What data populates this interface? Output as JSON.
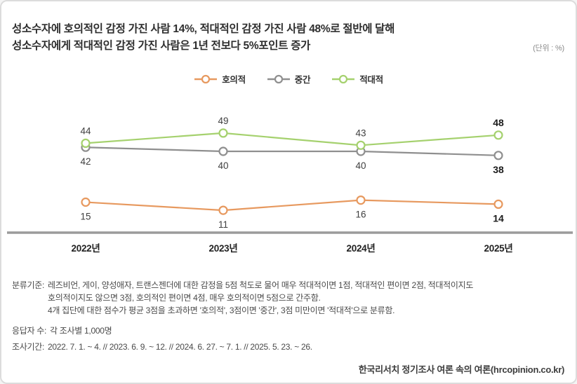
{
  "title": {
    "line1": "성소수자에 호의적인 감정 가진 사람 14%, 적대적인 감정 가진 사람 48%로 절반에 달해",
    "line2": "성소수자에게 적대적인 감정 가진 사람은 1년 전보다 5%포인트 증가"
  },
  "unit_label": "(단위 : %)",
  "chart_data": {
    "type": "line",
    "categories": [
      "2022년",
      "2023년",
      "2024년",
      "2025년"
    ],
    "series": [
      {
        "name": "호의적",
        "color": "#E7995F",
        "values": [
          15,
          11,
          16,
          14
        ],
        "label_position": "below"
      },
      {
        "name": "중간",
        "color": "#8F8F8F",
        "values": [
          42,
          40,
          40,
          38
        ],
        "label_position": "below"
      },
      {
        "name": "적대적",
        "color": "#A5D16E",
        "values": [
          44,
          49,
          43,
          48
        ],
        "label_position": "above"
      }
    ],
    "ylim": [
      0,
      60
    ],
    "grid": false,
    "legend_position": "top-center",
    "emphasized_category": "2025년",
    "axis_color": "#9b9b9b",
    "value_label_color": "#3f3f3f",
    "emphasized_label_color": "#1b1b1b"
  },
  "footnotes": {
    "classification": {
      "label": "분류기준:",
      "lines": [
        "레즈비언, 게이, 양성애자, 트랜스젠더에 대한  감정을 5점 척도로 물어 매우 적대적이면 1점, 적대적인 편이면 2점, 적대적이지도",
        "호의적이지도 않으면 3점, 호의적인 편이면 4점, 매우 호의적이면 5점으로 간주함.",
        "4개 집단에 대한 점수가 평균 3점을 초과하면 '호의적', 3점이면 '중간', 3점 미만이면 '적대적'으로 분류함."
      ]
    },
    "respondents": {
      "label": "응답자 수:",
      "value": "각 조사별 1,000명"
    },
    "period": {
      "label": "조사기간:",
      "value": "2022. 7. 1. ~ 4.  //  2023. 6. 9. ~ 12. //  2024. 6. 27. ~ 7. 1. // 2025. 5. 23. ~ 26."
    }
  },
  "source": "한국리서치 정기조사 여론 속의 여론(hrcopinion.co.kr)"
}
